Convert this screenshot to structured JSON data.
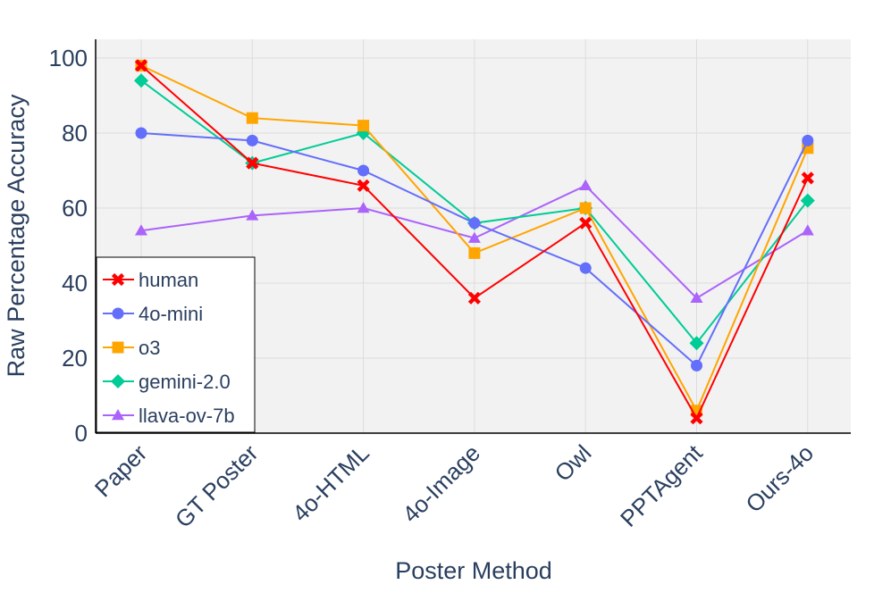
{
  "chart_data": {
    "type": "line",
    "categories": [
      "Paper",
      "GT Poster",
      "4o-HTML",
      "4o-Image",
      "Owl",
      "PPTAgent",
      "Ours-4o"
    ],
    "series": [
      {
        "name": "human",
        "color": "#ff0000",
        "marker": "x",
        "values": [
          98,
          72,
          66,
          36,
          56,
          4,
          68
        ]
      },
      {
        "name": "4o-mini",
        "color": "#636efa",
        "marker": "circle",
        "values": [
          80,
          78,
          70,
          56,
          44,
          18,
          78
        ]
      },
      {
        "name": "o3",
        "color": "#ffa500",
        "marker": "square",
        "values": [
          98,
          84,
          82,
          48,
          60,
          6,
          76
        ]
      },
      {
        "name": "gemini-2.0",
        "color": "#00cc96",
        "marker": "diamond",
        "values": [
          94,
          72,
          80,
          56,
          60,
          24,
          62
        ]
      },
      {
        "name": "llava-ov-7b",
        "color": "#ab63fa",
        "marker": "triangle",
        "values": [
          54,
          58,
          60,
          52,
          66,
          36,
          54
        ]
      }
    ],
    "xlabel": "Poster Method",
    "ylabel": "Raw Percentage Accuracy",
    "ylim": [
      0,
      105
    ],
    "yticks": [
      0,
      20,
      40,
      60,
      80,
      100
    ],
    "grid": true,
    "legend_position": "bottom-left",
    "plot_background": "#f2f2f2",
    "grid_color": "#dcdcdc"
  }
}
